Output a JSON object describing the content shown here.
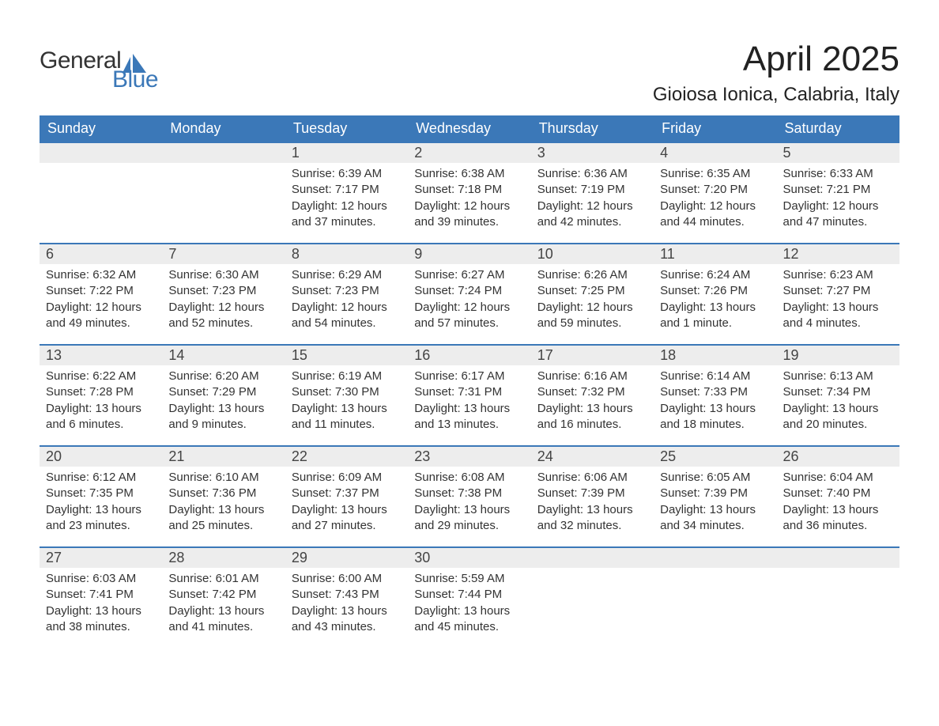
{
  "logo": {
    "text1": "General",
    "text2": "Blue",
    "icon_color": "#3b78b8"
  },
  "title": "April 2025",
  "location": "Gioiosa Ionica, Calabria, Italy",
  "colors": {
    "header_bg": "#3b78b8",
    "header_text": "#ffffff",
    "daynum_bg": "#ededed",
    "row_border": "#3b78b8",
    "body_text": "#333333"
  },
  "calendar": {
    "day_names": [
      "Sunday",
      "Monday",
      "Tuesday",
      "Wednesday",
      "Thursday",
      "Friday",
      "Saturday"
    ],
    "first_weekday_index": 2,
    "labels": {
      "sunrise": "Sunrise:",
      "sunset": "Sunset:",
      "daylight": "Daylight:"
    },
    "days": [
      {
        "n": 1,
        "sunrise": "6:39 AM",
        "sunset": "7:17 PM",
        "daylight": "12 hours and 37 minutes."
      },
      {
        "n": 2,
        "sunrise": "6:38 AM",
        "sunset": "7:18 PM",
        "daylight": "12 hours and 39 minutes."
      },
      {
        "n": 3,
        "sunrise": "6:36 AM",
        "sunset": "7:19 PM",
        "daylight": "12 hours and 42 minutes."
      },
      {
        "n": 4,
        "sunrise": "6:35 AM",
        "sunset": "7:20 PM",
        "daylight": "12 hours and 44 minutes."
      },
      {
        "n": 5,
        "sunrise": "6:33 AM",
        "sunset": "7:21 PM",
        "daylight": "12 hours and 47 minutes."
      },
      {
        "n": 6,
        "sunrise": "6:32 AM",
        "sunset": "7:22 PM",
        "daylight": "12 hours and 49 minutes."
      },
      {
        "n": 7,
        "sunrise": "6:30 AM",
        "sunset": "7:23 PM",
        "daylight": "12 hours and 52 minutes."
      },
      {
        "n": 8,
        "sunrise": "6:29 AM",
        "sunset": "7:23 PM",
        "daylight": "12 hours and 54 minutes."
      },
      {
        "n": 9,
        "sunrise": "6:27 AM",
        "sunset": "7:24 PM",
        "daylight": "12 hours and 57 minutes."
      },
      {
        "n": 10,
        "sunrise": "6:26 AM",
        "sunset": "7:25 PM",
        "daylight": "12 hours and 59 minutes."
      },
      {
        "n": 11,
        "sunrise": "6:24 AM",
        "sunset": "7:26 PM",
        "daylight": "13 hours and 1 minute."
      },
      {
        "n": 12,
        "sunrise": "6:23 AM",
        "sunset": "7:27 PM",
        "daylight": "13 hours and 4 minutes."
      },
      {
        "n": 13,
        "sunrise": "6:22 AM",
        "sunset": "7:28 PM",
        "daylight": "13 hours and 6 minutes."
      },
      {
        "n": 14,
        "sunrise": "6:20 AM",
        "sunset": "7:29 PM",
        "daylight": "13 hours and 9 minutes."
      },
      {
        "n": 15,
        "sunrise": "6:19 AM",
        "sunset": "7:30 PM",
        "daylight": "13 hours and 11 minutes."
      },
      {
        "n": 16,
        "sunrise": "6:17 AM",
        "sunset": "7:31 PM",
        "daylight": "13 hours and 13 minutes."
      },
      {
        "n": 17,
        "sunrise": "6:16 AM",
        "sunset": "7:32 PM",
        "daylight": "13 hours and 16 minutes."
      },
      {
        "n": 18,
        "sunrise": "6:14 AM",
        "sunset": "7:33 PM",
        "daylight": "13 hours and 18 minutes."
      },
      {
        "n": 19,
        "sunrise": "6:13 AM",
        "sunset": "7:34 PM",
        "daylight": "13 hours and 20 minutes."
      },
      {
        "n": 20,
        "sunrise": "6:12 AM",
        "sunset": "7:35 PM",
        "daylight": "13 hours and 23 minutes."
      },
      {
        "n": 21,
        "sunrise": "6:10 AM",
        "sunset": "7:36 PM",
        "daylight": "13 hours and 25 minutes."
      },
      {
        "n": 22,
        "sunrise": "6:09 AM",
        "sunset": "7:37 PM",
        "daylight": "13 hours and 27 minutes."
      },
      {
        "n": 23,
        "sunrise": "6:08 AM",
        "sunset": "7:38 PM",
        "daylight": "13 hours and 29 minutes."
      },
      {
        "n": 24,
        "sunrise": "6:06 AM",
        "sunset": "7:39 PM",
        "daylight": "13 hours and 32 minutes."
      },
      {
        "n": 25,
        "sunrise": "6:05 AM",
        "sunset": "7:39 PM",
        "daylight": "13 hours and 34 minutes."
      },
      {
        "n": 26,
        "sunrise": "6:04 AM",
        "sunset": "7:40 PM",
        "daylight": "13 hours and 36 minutes."
      },
      {
        "n": 27,
        "sunrise": "6:03 AM",
        "sunset": "7:41 PM",
        "daylight": "13 hours and 38 minutes."
      },
      {
        "n": 28,
        "sunrise": "6:01 AM",
        "sunset": "7:42 PM",
        "daylight": "13 hours and 41 minutes."
      },
      {
        "n": 29,
        "sunrise": "6:00 AM",
        "sunset": "7:43 PM",
        "daylight": "13 hours and 43 minutes."
      },
      {
        "n": 30,
        "sunrise": "5:59 AM",
        "sunset": "7:44 PM",
        "daylight": "13 hours and 45 minutes."
      }
    ]
  }
}
